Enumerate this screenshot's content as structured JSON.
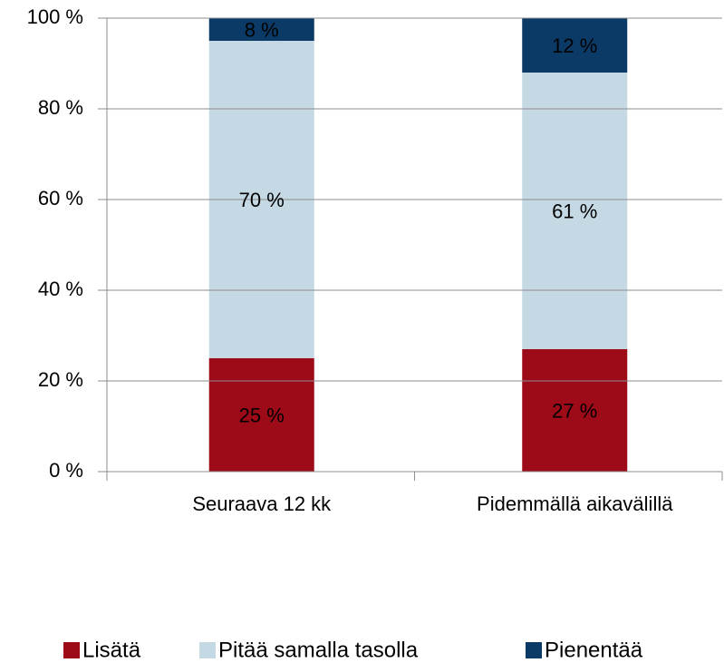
{
  "chart_data": {
    "type": "stacked_bar",
    "categories": [
      "Seuraava 12 kk",
      "Pidemmällä aikavälillä"
    ],
    "series": [
      {
        "name": "Lisätä",
        "color": "#9e0b18",
        "values": [
          25,
          27
        ],
        "value_labels": [
          "25 %",
          "27 %"
        ]
      },
      {
        "name": "Pitää samalla tasolla",
        "color": "#c5d9e4",
        "values": [
          70,
          61
        ],
        "value_labels": [
          "70 %",
          "61 %"
        ]
      },
      {
        "name": "Pienentää",
        "color": "#0b3a66",
        "values": [
          8,
          12
        ],
        "value_labels": [
          "8 %",
          "12 %"
        ]
      }
    ],
    "ylim": [
      0,
      100
    ],
    "yticks": [
      {
        "value": 0,
        "label": "0 %"
      },
      {
        "value": 20,
        "label": "20 %"
      },
      {
        "value": 40,
        "label": "40 %"
      },
      {
        "value": 60,
        "label": "60 %"
      },
      {
        "value": 80,
        "label": "80 %"
      },
      {
        "value": 100,
        "label": "100 %"
      }
    ],
    "grid": true,
    "legend": "bottom"
  }
}
